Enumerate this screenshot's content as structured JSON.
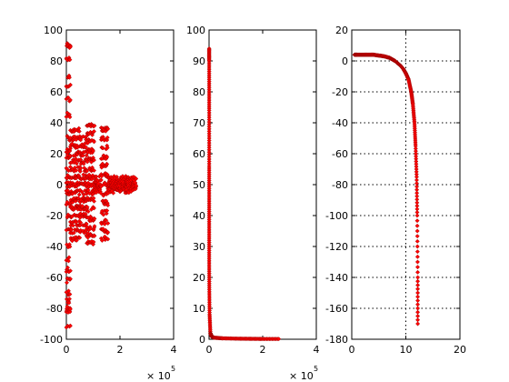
{
  "chart_data": [
    {
      "type": "scatter",
      "title": "",
      "xlabel": "",
      "ylabel": "",
      "xlim": [
        0,
        4
      ],
      "ylim": [
        -100,
        100
      ],
      "x_multiplier_base": "× 10",
      "x_multiplier_exp": "5",
      "xticks": [
        0,
        2,
        4
      ],
      "yticks": [
        -100,
        -80,
        -60,
        -40,
        -20,
        0,
        20,
        40,
        60,
        80,
        100
      ],
      "grid": false,
      "marker_color": "#ff0000",
      "marker_edge_color": "#8b0000",
      "series": [
        {
          "clusters": [
            {
              "x_range": [
                0.0,
                0.15
              ],
              "y_values": [
                90,
                90,
                82,
                70,
                64,
                55,
                45,
                30,
                22,
                18,
                10,
                5,
                0,
                -5,
                -12,
                -20,
                -30,
                -40,
                -48,
                -55,
                -62,
                -70,
                -75,
                -80,
                -82,
                -92
              ]
            },
            {
              "x_range": [
                0.15,
                0.5
              ],
              "y_values": [
                35,
                30,
                25,
                20,
                15,
                10,
                5,
                0,
                -5,
                -10,
                -15,
                -20,
                -25,
                -30,
                -35
              ]
            },
            {
              "x_range": [
                0.5,
                0.75
              ],
              "y_values": [
                30,
                25,
                20,
                15,
                10,
                5,
                0,
                -5,
                -10,
                -15,
                -20,
                -25,
                -30
              ]
            },
            {
              "x_range": [
                0.75,
                1.05
              ],
              "y_values": [
                38,
                33,
                28,
                22,
                16,
                10,
                5,
                0,
                -5,
                -10,
                -16,
                -22,
                -28,
                -33,
                -38
              ]
            },
            {
              "x_range": [
                1.05,
                1.3
              ],
              "y_values": [
                4,
                2,
                0,
                -2,
                -4
              ]
            },
            {
              "x_range": [
                1.3,
                1.55
              ],
              "y_values": [
                36,
                30,
                24,
                18,
                12,
                6,
                0,
                -6,
                -12,
                -18,
                -24,
                -30,
                -35
              ]
            },
            {
              "x_range": [
                1.55,
                2.6
              ],
              "y_values": [
                4,
                2,
                0,
                -2,
                -4
              ]
            }
          ]
        }
      ]
    },
    {
      "type": "scatter",
      "title": "",
      "xlabel": "",
      "ylabel": "",
      "xlim": [
        0,
        4
      ],
      "ylim": [
        0,
        100
      ],
      "x_multiplier_base": "× 10",
      "x_multiplier_exp": "5",
      "xticks": [
        0,
        2,
        4
      ],
      "yticks": [
        0,
        10,
        20,
        30,
        40,
        50,
        60,
        70,
        80,
        90,
        100
      ],
      "grid": false,
      "marker_color": "#ff0000",
      "marker_edge_color": "#8b0000",
      "series": [
        {
          "x": [
            0.005,
            0.005,
            0.005,
            0.005,
            0.005,
            0.005,
            0.005,
            0.005,
            0.005,
            0.005,
            0.01,
            0.02,
            0.05,
            0.1,
            0.2,
            0.5,
            1.0,
            1.5,
            2.0,
            2.6
          ],
          "y": [
            94,
            90,
            82,
            74,
            65,
            56,
            48,
            40,
            32,
            24,
            16,
            8,
            2,
            0.8,
            0.5,
            0.3,
            0.2,
            0.15,
            0.1,
            0.1
          ]
        }
      ]
    },
    {
      "type": "scatter",
      "title": "",
      "xlabel": "",
      "ylabel": "",
      "xlim": [
        0,
        20
      ],
      "ylim": [
        -180,
        20
      ],
      "xticks": [
        0,
        10,
        20
      ],
      "yticks": [
        -180,
        -160,
        -140,
        -120,
        -100,
        -80,
        -60,
        -40,
        -20,
        0,
        20
      ],
      "grid": true,
      "marker_color": "#ff0000",
      "marker_edge_color": "#8b0000",
      "series": [
        {
          "x": [
            0.5,
            1,
            2,
            3,
            4,
            5,
            6,
            7,
            7.5,
            8,
            8.5,
            9,
            9.5,
            10,
            10.5,
            11,
            11.3,
            11.6,
            11.8,
            12.0,
            12.1,
            12.2,
            12.2
          ],
          "y": [
            4,
            4,
            4,
            4,
            4,
            3.5,
            3,
            2,
            1,
            0,
            -1.5,
            -3,
            -5,
            -8,
            -12,
            -20,
            -28,
            -40,
            -55,
            -75,
            -100,
            -140,
            -170
          ]
        }
      ]
    }
  ]
}
